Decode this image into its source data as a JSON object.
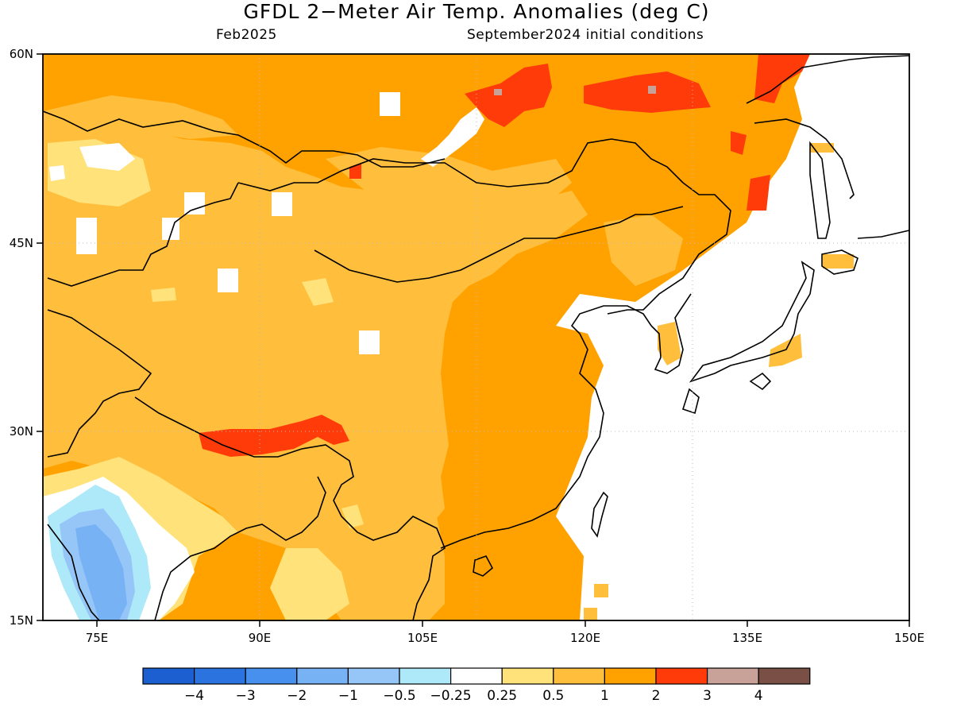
{
  "title": "GFDL 2−Meter Air Temp. Anomalies (deg C)",
  "subtitle_left": "Feb2025",
  "subtitle_right": "September2024 initial conditions",
  "map": {
    "lon_range": [
      70,
      150
    ],
    "lat_range": [
      15,
      60
    ],
    "lat_labels": [
      {
        "value": 60,
        "label": "60N"
      },
      {
        "value": 45,
        "label": "45N"
      },
      {
        "value": 30,
        "label": "30N"
      },
      {
        "value": 15,
        "label": "15N"
      }
    ],
    "lon_labels": [
      {
        "value": 75,
        "label": "75E"
      },
      {
        "value": 90,
        "label": "90E"
      },
      {
        "value": 105,
        "label": "105E"
      },
      {
        "value": 120,
        "label": "120E"
      },
      {
        "value": 135,
        "label": "135E"
      },
      {
        "value": 150,
        "label": "150E"
      }
    ],
    "grid": "dotted"
  },
  "colorbar": {
    "colors": [
      "#1b5fd0",
      "#2b74e0",
      "#4890ee",
      "#77b2f4",
      "#96c6f7",
      "#aee9f9",
      "#ffffff",
      "#ffe27a",
      "#ffbe3c",
      "#ffa200",
      "#ff3b0a",
      "#c8a298",
      "#7a5046"
    ],
    "labels": [
      "−4",
      "−3",
      "−2",
      "−1",
      "−0.5",
      "−0.25",
      "0.25",
      "0.5",
      "1",
      "2",
      "3",
      "4"
    ]
  }
}
